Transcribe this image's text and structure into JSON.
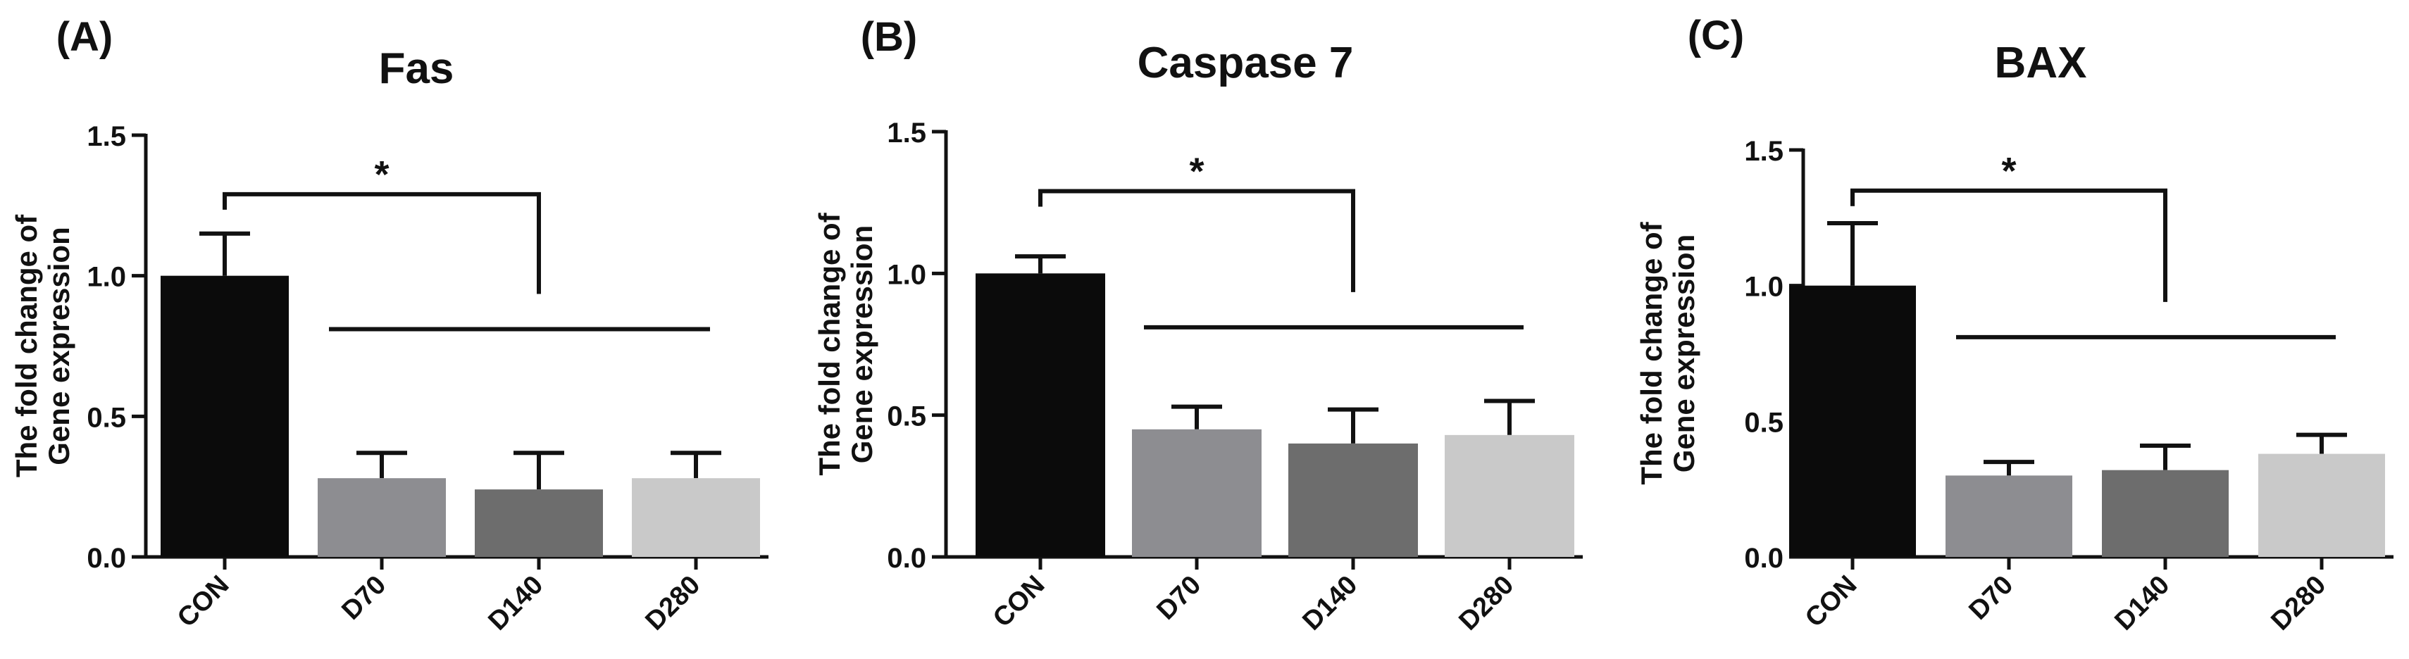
{
  "figure": {
    "colors": {
      "ink": "#111111",
      "CON": "#0b0b0b",
      "D70": "#8d8d91",
      "D140": "#6d6d6d",
      "D280": "#c9c9c9"
    }
  },
  "chart_data": [
    {
      "type": "bar",
      "panel_label": "(A)",
      "title": "Fas",
      "ylabel_line1": "The fold change of",
      "ylabel_line2": "Gene expression",
      "xlabel": "",
      "categories": [
        "CON",
        "D70",
        "D140",
        "D280"
      ],
      "values": [
        1.0,
        0.28,
        0.24,
        0.28
      ],
      "errors": [
        0.15,
        0.09,
        0.13,
        0.09
      ],
      "ylim": [
        0,
        1.5
      ],
      "yticks": [
        "0.0",
        "0.5",
        "1.0",
        "1.5"
      ],
      "significance": {
        "label": "*",
        "bracket_from": 0,
        "bracket_to": 2,
        "bracket_y": 1.29,
        "group_line_from": 1,
        "group_line_to": 3,
        "group_line_y": 0.81
      }
    },
    {
      "type": "bar",
      "panel_label": "(B)",
      "title": "Caspase 7",
      "ylabel_line1": "The fold change of",
      "ylabel_line2": "Gene expression",
      "xlabel": "",
      "categories": [
        "CON",
        "D70",
        "D140",
        "D280"
      ],
      "values": [
        1.0,
        0.45,
        0.4,
        0.43
      ],
      "errors": [
        0.06,
        0.08,
        0.12,
        0.12
      ],
      "ylim": [
        0,
        1.5
      ],
      "yticks": [
        "0.0",
        "0.5",
        "1.0",
        "1.5"
      ],
      "significance": {
        "label": "*",
        "bracket_from": 0,
        "bracket_to": 2,
        "bracket_y": 1.29,
        "group_line_from": 1,
        "group_line_to": 3,
        "group_line_y": 0.81
      }
    },
    {
      "type": "bar",
      "panel_label": "(C)",
      "title": "BAX",
      "ylabel_line1": "The fold change of",
      "ylabel_line2": "Gene expression",
      "xlabel": "",
      "categories": [
        "CON",
        "D70",
        "D140",
        "D280"
      ],
      "values": [
        1.0,
        0.3,
        0.32,
        0.38
      ],
      "errors": [
        0.23,
        0.05,
        0.09,
        0.07
      ],
      "ylim": [
        0,
        1.5
      ],
      "yticks": [
        "0.0",
        "0.5",
        "1.0",
        "1.5"
      ],
      "significance": {
        "label": "*",
        "bracket_from": 0,
        "bracket_to": 2,
        "bracket_y": 1.35,
        "group_line_from": 1,
        "group_line_to": 3,
        "group_line_y": 0.81
      }
    }
  ]
}
